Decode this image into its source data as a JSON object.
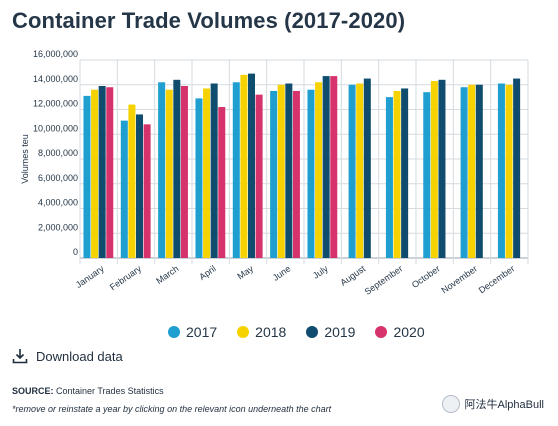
{
  "title": "Container Trade Volumes (2017-2020)",
  "chart_data": {
    "type": "bar",
    "ylabel": "Volumes teu",
    "ylim": [
      0,
      16000000
    ],
    "yticks": [
      "0",
      "2,000,000",
      "4,000,000",
      "6,000,000",
      "8,000,000",
      "10,000,000",
      "12,000,000",
      "14,000,000",
      "16,000,000"
    ],
    "categories": [
      "January",
      "February",
      "March",
      "April",
      "May",
      "June",
      "July",
      "August",
      "September",
      "October",
      "November",
      "December"
    ],
    "series": [
      {
        "name": "2017",
        "color": "#1e9fd0",
        "values": [
          13100000,
          11100000,
          14200000,
          12900000,
          14200000,
          13500000,
          13600000,
          14000000,
          13000000,
          13400000,
          13800000,
          14100000
        ]
      },
      {
        "name": "2018",
        "color": "#f6d300",
        "values": [
          13600000,
          12400000,
          13600000,
          13700000,
          14800000,
          14000000,
          14200000,
          14100000,
          13500000,
          14300000,
          14000000,
          14000000
        ]
      },
      {
        "name": "2019",
        "color": "#0f4c6e",
        "values": [
          13900000,
          11600000,
          14400000,
          14100000,
          14900000,
          14100000,
          14700000,
          14500000,
          13700000,
          14400000,
          14000000,
          14500000
        ]
      },
      {
        "name": "2020",
        "color": "#d6336c",
        "values": [
          13800000,
          10800000,
          13900000,
          12200000,
          13200000,
          13500000,
          14700000,
          null,
          null,
          null,
          null,
          null
        ]
      }
    ],
    "legend_position": "bottom",
    "grid": true
  },
  "legend": {
    "items": [
      "2017",
      "2018",
      "2019",
      "2020"
    ]
  },
  "download": {
    "label": "Download data"
  },
  "source": {
    "label": "SOURCE:",
    "text": "Container Trades Statistics"
  },
  "note": "*remove or reinstate a year by clicking on the relevant icon underneath the chart",
  "watermark": "阿法牛AlphaBull"
}
